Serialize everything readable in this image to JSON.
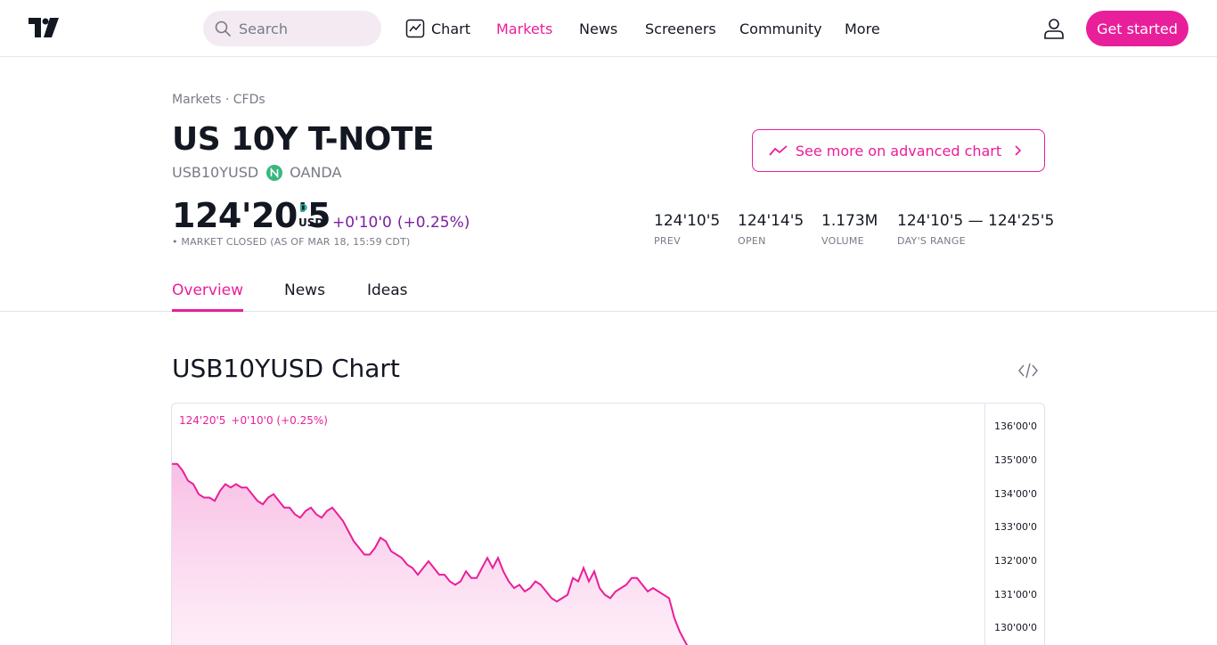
{
  "header": {
    "search_placeholder": "Search",
    "nav": [
      {
        "label": "Chart"
      },
      {
        "label": "Markets"
      },
      {
        "label": "News"
      },
      {
        "label": "Screeners"
      },
      {
        "label": "Community"
      },
      {
        "label": "More"
      }
    ],
    "active_nav": "Markets",
    "cta_label": "Get started",
    "accent_color": "#e91e9a"
  },
  "breadcrumb": {
    "markets": "Markets",
    "sep": "·",
    "cfds": "CFDs"
  },
  "symbol": {
    "title": "US 10Y T-NOTE",
    "ticker": "USB10YUSD",
    "broker": "OANDA",
    "price": "124'20'5",
    "price_flag": "D",
    "currency": "USD",
    "change": "+0'10'0",
    "change_pct": "(+0.25%)",
    "market_status": "• MARKET CLOSED (AS OF MAR 18, 15:59 CDT)",
    "advanced_chart_label": "See more on advanced chart"
  },
  "stats": [
    {
      "value": "124'10'5",
      "label": "PREV"
    },
    {
      "value": "124'14'5",
      "label": "OPEN"
    },
    {
      "value": "1.173M",
      "label": "VOLUME"
    },
    {
      "value": "124'10'5 — 124'25'5",
      "label": "DAY'S RANGE"
    }
  ],
  "tabs": [
    {
      "label": "Overview"
    },
    {
      "label": "News"
    },
    {
      "label": "Ideas"
    }
  ],
  "chart_section": {
    "title": "USB10YUSD Chart",
    "legend_price": "124'20'5",
    "legend_change": "+0'10'0 (+0.25%)"
  },
  "chart_data": {
    "type": "area",
    "y_tick_labels": [
      "136'00'0",
      "135'00'0",
      "134'00'0",
      "133'00'0",
      "132'00'0",
      "131'00'0",
      "130'00'0"
    ],
    "y_tick_values": [
      136,
      135,
      134,
      133,
      132,
      131,
      130
    ],
    "ylim": [
      129,
      136.7
    ],
    "series_color": "#e91e9a",
    "values": [
      134.9,
      134.9,
      134.7,
      134.4,
      134.3,
      134.0,
      133.9,
      133.9,
      133.8,
      134.1,
      134.3,
      134.2,
      134.3,
      134.2,
      134.2,
      134.0,
      133.8,
      133.7,
      133.9,
      134.0,
      133.8,
      133.6,
      133.6,
      133.4,
      133.3,
      133.5,
      133.6,
      133.4,
      133.3,
      133.5,
      133.6,
      133.4,
      133.2,
      132.9,
      132.6,
      132.4,
      132.2,
      132.2,
      132.4,
      132.7,
      132.6,
      132.3,
      132.2,
      132.1,
      131.9,
      131.8,
      131.6,
      131.8,
      132.0,
      131.8,
      131.6,
      131.6,
      131.4,
      131.3,
      131.4,
      131.7,
      131.5,
      131.5,
      131.8,
      132.1,
      131.8,
      132.1,
      131.7,
      131.4,
      131.2,
      131.3,
      131.1,
      131.2,
      131.4,
      131.3,
      131.1,
      130.9,
      130.8,
      130.9,
      131.0,
      131.5,
      131.4,
      131.8,
      131.4,
      131.7,
      131.2,
      131.0,
      130.9,
      131.1,
      131.2,
      131.3,
      131.5,
      131.5,
      131.3,
      131.1,
      131.2,
      131.1,
      131.0,
      130.9,
      130.3,
      129.9,
      129.6,
      129.3
    ]
  }
}
